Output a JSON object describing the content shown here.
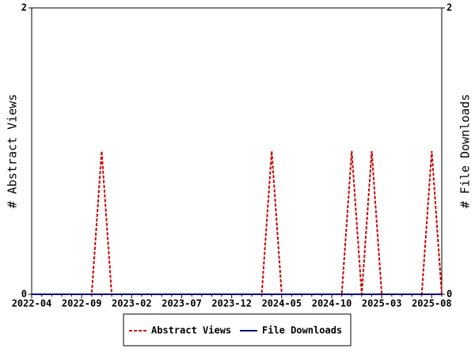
{
  "chart_data": {
    "type": "line",
    "y_label": "# Abstract Views",
    "y2_label": "# File Downloads",
    "categories": [
      "2022-04",
      null,
      null,
      null,
      null,
      "2022-09",
      null,
      null,
      null,
      null,
      "2023-02",
      null,
      null,
      null,
      null,
      "2023-07",
      null,
      null,
      null,
      null,
      "2023-12",
      null,
      null,
      null,
      null,
      "2024-05",
      null,
      null,
      null,
      null,
      "2024-10",
      null,
      null,
      null,
      null,
      "2025-03",
      null,
      null,
      null,
      null,
      "2025-08",
      null
    ],
    "series": [
      {
        "name": "Abstract Views",
        "color": "#cc0000",
        "dashed": true,
        "values": [
          0,
          0,
          0,
          0,
          0,
          0,
          0,
          1,
          0,
          0,
          0,
          0,
          0,
          0,
          0,
          0,
          0,
          0,
          0,
          0,
          0,
          0,
          0,
          0,
          1,
          0,
          0,
          0,
          0,
          0,
          0,
          0,
          1,
          0,
          1,
          0,
          0,
          0,
          0,
          0,
          1,
          0
        ]
      },
      {
        "name": "File Downloads",
        "color": "#000080",
        "dashed": false,
        "axis": "y2",
        "values": [
          0,
          0,
          0,
          0,
          0,
          0,
          0,
          0,
          0,
          0,
          0,
          0,
          0,
          0,
          0,
          0,
          0,
          0,
          0,
          0,
          0,
          0,
          0,
          0,
          0,
          0,
          0,
          0,
          0,
          0,
          0,
          0,
          0,
          0,
          0,
          0,
          0,
          0,
          0,
          0,
          0,
          0
        ]
      }
    ],
    "ylim": [
      0,
      2
    ],
    "yticks": [
      0,
      2
    ],
    "y2lim": [
      0,
      2
    ],
    "y2ticks": [
      0,
      2
    ]
  }
}
